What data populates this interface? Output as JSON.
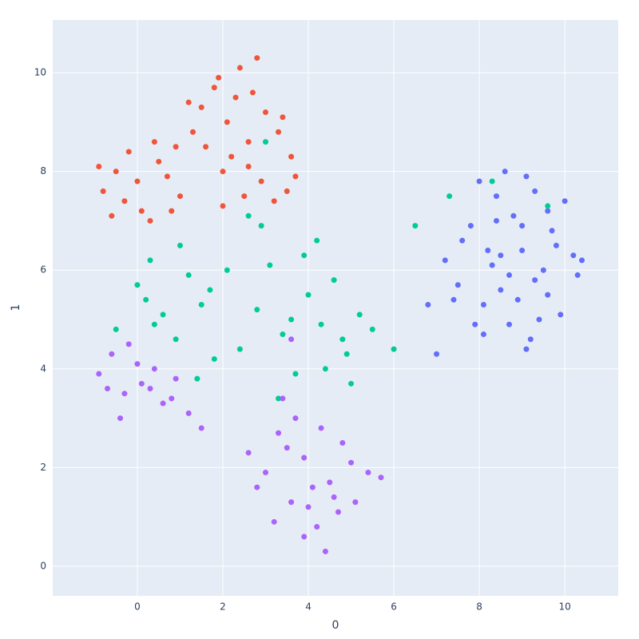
{
  "chart_data": {
    "type": "scatter",
    "x_label": "0",
    "y_label": "1",
    "xlim": [
      -1.98,
      11.25
    ],
    "ylim": [
      -0.6,
      11.07
    ],
    "xticks": [
      0,
      2,
      4,
      6,
      8,
      10
    ],
    "yticks": [
      0,
      2,
      4,
      6,
      8,
      10
    ],
    "grid": true,
    "background": "#E5ECF6",
    "series": [
      {
        "color": "#636EFA",
        "x": [
          7.2,
          7.5,
          7.8,
          8.1,
          8.4,
          8.7,
          9.0,
          9.3,
          9.6,
          9.9,
          10.2,
          7.6,
          8.0,
          8.5,
          9.1,
          9.7,
          10.3,
          7.9,
          8.3,
          8.8,
          9.4,
          10.0,
          8.2,
          8.9,
          9.5,
          8.6,
          9.2,
          9.8,
          7.4,
          10.4,
          8.4,
          9.0,
          8.7,
          9.3,
          8.1,
          9.6,
          9.1,
          8.5,
          6.8,
          7.0
        ],
        "y": [
          6.2,
          5.7,
          6.9,
          5.3,
          7.5,
          4.9,
          6.4,
          5.8,
          7.2,
          5.1,
          6.3,
          6.6,
          7.8,
          5.6,
          7.9,
          6.8,
          5.9,
          4.9,
          6.1,
          7.1,
          5.0,
          7.4,
          6.4,
          5.4,
          6.0,
          8.0,
          4.6,
          6.5,
          5.4,
          6.2,
          7.0,
          6.9,
          5.9,
          7.6,
          4.7,
          5.5,
          4.4,
          6.3,
          5.3,
          4.3
        ]
      },
      {
        "color": "#EF553B",
        "x": [
          -0.8,
          -0.5,
          -0.2,
          0.1,
          0.4,
          0.7,
          1.0,
          1.3,
          -0.6,
          0.0,
          0.5,
          0.9,
          1.5,
          1.8,
          2.1,
          2.4,
          2.7,
          3.0,
          3.3,
          3.6,
          1.6,
          2.0,
          2.5,
          2.9,
          3.2,
          3.5,
          2.3,
          2.6,
          1.2,
          0.3,
          -0.3,
          2.8,
          3.7,
          2.2,
          1.9,
          3.4,
          0.8,
          -0.9,
          2.0,
          2.6
        ],
        "y": [
          7.6,
          8.0,
          8.4,
          7.2,
          8.6,
          7.9,
          7.5,
          8.8,
          7.1,
          7.8,
          8.2,
          8.5,
          9.3,
          9.7,
          9.0,
          10.1,
          9.6,
          9.2,
          8.8,
          8.3,
          8.5,
          8.0,
          7.5,
          7.8,
          7.4,
          7.6,
          9.5,
          8.6,
          9.4,
          7.0,
          7.4,
          10.3,
          7.9,
          8.3,
          9.9,
          9.1,
          7.2,
          8.1,
          7.3,
          8.1
        ]
      },
      {
        "color": "#00CC96",
        "x": [
          -0.5,
          0.0,
          0.3,
          0.6,
          0.9,
          1.2,
          1.5,
          1.8,
          2.1,
          0.4,
          1.0,
          1.7,
          2.4,
          2.8,
          3.1,
          3.4,
          3.7,
          4.0,
          4.3,
          4.6,
          4.9,
          5.2,
          3.3,
          3.9,
          4.4,
          5.0,
          2.9,
          3.6,
          4.2,
          4.8,
          0.2,
          1.4,
          2.6,
          5.5,
          6.0,
          6.5,
          7.3,
          8.3,
          9.6,
          3.0
        ],
        "y": [
          4.8,
          5.7,
          6.2,
          5.1,
          4.6,
          5.9,
          5.3,
          4.2,
          6.0,
          4.9,
          6.5,
          5.6,
          4.4,
          5.2,
          6.1,
          4.7,
          3.9,
          5.5,
          4.9,
          5.8,
          4.3,
          5.1,
          3.4,
          6.3,
          4.0,
          3.7,
          6.9,
          5.0,
          6.6,
          4.6,
          5.4,
          3.8,
          7.1,
          4.8,
          4.4,
          6.9,
          7.5,
          7.8,
          7.3,
          8.6
        ]
      },
      {
        "color": "#AB63FA",
        "x": [
          -0.9,
          -0.6,
          -0.3,
          0.0,
          0.3,
          0.6,
          0.9,
          1.2,
          -0.7,
          -0.2,
          0.4,
          0.8,
          -0.4,
          0.1,
          2.6,
          3.0,
          3.3,
          3.6,
          3.9,
          4.2,
          4.5,
          4.8,
          5.1,
          5.4,
          3.2,
          3.7,
          4.1,
          4.4,
          4.7,
          5.0,
          3.5,
          3.9,
          4.3,
          4.6,
          2.8,
          4.0,
          3.4,
          1.5,
          5.7,
          3.6
        ],
        "y": [
          3.9,
          4.3,
          3.5,
          4.1,
          3.6,
          3.3,
          3.8,
          3.1,
          3.6,
          4.5,
          4.0,
          3.4,
          3.0,
          3.7,
          2.3,
          1.9,
          2.7,
          1.3,
          2.2,
          0.8,
          1.7,
          2.5,
          1.3,
          1.9,
          0.9,
          3.0,
          1.6,
          0.3,
          1.1,
          2.1,
          2.4,
          0.6,
          2.8,
          1.4,
          1.6,
          1.2,
          3.4,
          2.8,
          1.8,
          4.6
        ]
      }
    ]
  }
}
